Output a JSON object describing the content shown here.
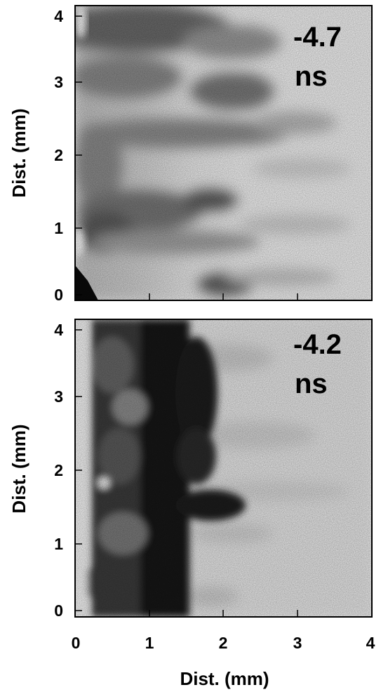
{
  "figure": {
    "panels": [
      {
        "id": "top",
        "label_line1": "-4.7",
        "label_line2": "ns",
        "ylabel": "Dist. (mm)",
        "yticks": [
          "0",
          "1",
          "2",
          "3",
          "4"
        ]
      },
      {
        "id": "bottom",
        "label_line1": "-4.2",
        "label_line2": "ns",
        "ylabel": "Dist. (mm)",
        "yticks": [
          "0",
          "1",
          "2",
          "3",
          "4"
        ]
      }
    ],
    "xlabel": "Dist. (mm)",
    "xticks": [
      "0",
      "1",
      "2",
      "3",
      "4"
    ],
    "axis_range_mm": [
      0,
      4
    ],
    "colors": {
      "image_light": "#f2f2f2",
      "image_dark": "#111111"
    }
  }
}
